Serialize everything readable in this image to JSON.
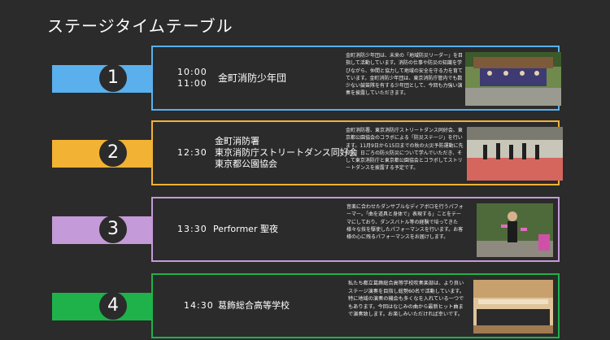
{
  "title": "ステージタイムテーブル",
  "colors": {
    "background": "#2b2b2b",
    "blue": "#5ab0ec",
    "orange": "#f2b234",
    "purple": "#c49ad8",
    "green": "#1fb24b"
  },
  "entries": [
    {
      "number": "1",
      "times": [
        "10:00",
        "11:00"
      ],
      "performers": [
        "金町消防少年団"
      ],
      "description": "金町消防少年団は、未来の「地域防災リーダー」を目指して活動しています。消防の仕事や防災の知識を学びながら、仲間と協力して地域の安全を守る力を育てています。金町消防少年団は、東京消防庁管内でも数少ない鼓笛隊を有する少年団として、今回も力強い演奏を披露していただきます。"
    },
    {
      "number": "2",
      "times": [
        "12:30"
      ],
      "performers": [
        "金町消防署",
        "東京消防庁ストリートダンス同好会",
        "東京都公園協会"
      ],
      "description": "金町消防署、東京消防庁ストリートダンス同好会、東京都公園協会のコラボによる「防災ステージ」を行います。11月9日から15日までの秋の火災予防運動に先立ち、日ごろの防火防災について学んでいただき、そして東京消防庁と東京都公園協会とコラボしてストリートダンスを披露する予定です。"
    },
    {
      "number": "3",
      "times": [
        "13:30"
      ],
      "performers": [
        "Performer 聖夜"
      ],
      "description": "音楽に合わせたダンサブルなディアボロを行うパフォーマー。「曲を道具と身体で」表現する」ことをテーマにしており、ダンスバトル等の経験で培ってきた様々な技を駆使したパフォーマンスを行います。お客様の心に残るパフォーマンスをお届けします。"
    },
    {
      "number": "4",
      "times": [
        "14:30"
      ],
      "performers": [
        "葛飾総合高等学校"
      ],
      "description": "私たち都立葛飾総合高等学校吹奏楽部は、より良いステージ演奏を目指し総勢60名で活動しています。特に地域の演奏の機会も多くなを入れている一つでもあります。今回はなじみの曲から最新ヒット曲まで演奏致します。お楽しみいただければ幸いです。"
    }
  ]
}
